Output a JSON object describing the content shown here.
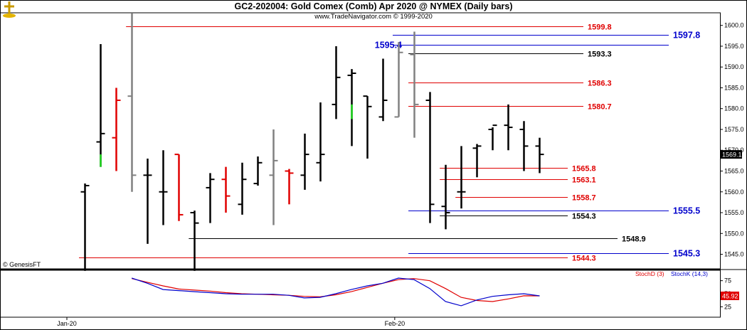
{
  "header": {
    "title": "GC2-202004:  Gold Comex (Comb) Apr 2020 @ NYMEX  (Daily bars)",
    "subtitle": "www.TradeNavigator.com © 1999-2020",
    "logo_icon": "gold-cross-icon"
  },
  "watermark": "© GenesisFT",
  "colors": {
    "up": "#000000",
    "down": "#000000",
    "red_bar": "#e00000",
    "green_bar": "#1ed81e",
    "gray_bar": "#808080",
    "red_line": "#e00000",
    "blue_line": "#0000cc",
    "black_line": "#000000",
    "stoch_d": "#e00000",
    "stoch_k": "#0000cc"
  },
  "chart_data": [
    {
      "type": "bar",
      "subtype": "ohlc",
      "ylim": [
        1541.5,
        1602
      ],
      "yticks": [
        1545.0,
        1550.0,
        1555.0,
        1560.0,
        1565.0,
        1570.0,
        1575.0,
        1580.0,
        1585.0,
        1590.0,
        1595.0,
        1600.0
      ],
      "last_value": "1569.1",
      "x_labels": [
        {
          "label": "Jan-20",
          "bar": 0
        },
        {
          "label": "Feb-20",
          "bar": 20.9
        }
      ],
      "bars": [
        {
          "o": 1560,
          "h": 1562,
          "l": 1541,
          "c": 1561.5,
          "color": "black"
        },
        {
          "o": 1572,
          "h": 1595.5,
          "l": 1566,
          "c": 1574,
          "color": "black"
        },
        {
          "o": 1573,
          "h": 1585,
          "l": 1565,
          "c": 1582,
          "color": "red"
        },
        {
          "o": 1583,
          "h": 1603,
          "l": 1560,
          "c": 1564,
          "color": "gray"
        },
        {
          "o": 1564,
          "h": 1568,
          "l": 1547.5,
          "c": 1564,
          "color": "black"
        },
        {
          "o": 1560,
          "h": 1570,
          "l": 1552,
          "c": 1560,
          "color": "black"
        },
        {
          "o": 1569,
          "h": 1569,
          "l": 1553,
          "c": 1554.5,
          "color": "red"
        },
        {
          "o": 1555,
          "h": 1555.5,
          "l": 1541,
          "c": 1552.5,
          "color": "black"
        },
        {
          "o": 1561,
          "h": 1564.5,
          "l": 1552.5,
          "c": 1563,
          "color": "black"
        },
        {
          "o": 1563,
          "h": 1566,
          "l": 1555,
          "c": 1559,
          "color": "red"
        },
        {
          "o": 1557,
          "h": 1567,
          "l": 1554.5,
          "c": 1563,
          "color": "black"
        },
        {
          "o": 1562,
          "h": 1568.5,
          "l": 1561.5,
          "c": 1567,
          "color": "black"
        },
        {
          "o": 1564,
          "h": 1575,
          "l": 1552,
          "c": 1567.5,
          "color": "gray"
        },
        {
          "o": 1565,
          "h": 1565.5,
          "l": 1557,
          "c": 1564.5,
          "color": "red"
        },
        {
          "o": 1564,
          "h": 1574,
          "l": 1560.5,
          "c": 1569,
          "color": "black"
        },
        {
          "o": 1567,
          "h": 1581.5,
          "l": 1562.5,
          "c": 1569,
          "color": "black"
        },
        {
          "o": 1581,
          "h": 1595,
          "l": 1577.5,
          "c": 1587.5,
          "color": "black"
        },
        {
          "o": 1588,
          "h": 1589.5,
          "l": 1571,
          "c": 1588.5,
          "color": "black"
        },
        {
          "o": 1583,
          "h": 1583,
          "l": 1568,
          "c": 1580.5,
          "color": "black"
        },
        {
          "o": 1578,
          "h": 1592,
          "l": 1577,
          "c": 1582,
          "color": "black"
        },
        {
          "o": 1578,
          "h": 1596,
          "l": 1578,
          "c": 1593.5,
          "color": "gray"
        },
        {
          "o": 1593,
          "h": 1598.5,
          "l": 1573,
          "c": 1581,
          "color": "gray"
        },
        {
          "o": 1582,
          "h": 1584,
          "l": 1552.5,
          "c": 1557,
          "color": "black"
        },
        {
          "o": 1556.5,
          "h": 1566.5,
          "l": 1551,
          "c": 1555,
          "color": "black"
        },
        {
          "o": 1560,
          "h": 1571,
          "l": 1556,
          "c": 1560,
          "color": "black"
        },
        {
          "o": 1570.5,
          "h": 1571.5,
          "l": 1563.5,
          "c": 1571,
          "color": "black"
        },
        {
          "o": 1575,
          "h": 1575.5,
          "l": 1570,
          "c": 1576,
          "color": "black"
        },
        {
          "o": 1576,
          "h": 1581,
          "l": 1570,
          "c": 1575.5,
          "color": "black"
        },
        {
          "o": 1575,
          "h": 1577,
          "l": 1565,
          "c": 1571,
          "color": "black"
        },
        {
          "o": 1571,
          "h": 1573,
          "l": 1564.5,
          "c": 1569,
          "color": "black"
        }
      ],
      "levels": [
        {
          "value": 1599.8,
          "label": "1599.8",
          "color": "red",
          "start_bar": 3
        },
        {
          "value": 1597.8,
          "label": "1597.8",
          "color": "blue",
          "start_bar": 20
        },
        {
          "value": 1595.4,
          "label": "1595.4",
          "color": "blue",
          "start_bar": 20
        },
        {
          "value": 1593.3,
          "label": "1593.3",
          "color": "black",
          "start_bar": 21
        },
        {
          "value": 1586.3,
          "label": "1586.3",
          "color": "red",
          "start_bar": 21
        },
        {
          "value": 1580.7,
          "label": "1580.7",
          "color": "red",
          "start_bar": 21
        },
        {
          "value": 1565.8,
          "label": "1565.8",
          "color": "red",
          "start_bar": 23
        },
        {
          "value": 1563.1,
          "label": "1563.1",
          "color": "red",
          "start_bar": 23
        },
        {
          "value": 1558.7,
          "label": "1558.7",
          "color": "red",
          "start_bar": 24
        },
        {
          "value": 1555.5,
          "label": "1555.5",
          "color": "blue",
          "start_bar": 21
        },
        {
          "value": 1554.3,
          "label": "1554.3",
          "color": "black",
          "start_bar": 23
        },
        {
          "value": 1548.9,
          "label": "1548.9",
          "color": "black",
          "start_bar": 7
        },
        {
          "value": 1545.3,
          "label": "1545.3",
          "color": "blue",
          "start_bar": 21
        },
        {
          "value": 1544.3,
          "label": "1544.3",
          "color": "red",
          "start_bar": 0
        }
      ]
    },
    {
      "type": "line",
      "ylim": [
        5,
        95
      ],
      "yticks": [
        25,
        50,
        75
      ],
      "last_value": "45.92",
      "series": [
        {
          "name": "StochD (3)",
          "values": [
            null,
            null,
            null,
            79,
            72,
            65,
            59,
            57,
            55,
            52,
            50,
            49,
            48,
            47,
            45,
            44,
            48,
            54,
            62,
            70,
            77,
            79,
            75,
            60,
            43,
            37,
            35,
            40,
            46,
            45.92
          ]
        },
        {
          "name": "StochK (14,3)",
          "values": [
            null,
            null,
            null,
            80,
            70,
            58,
            56,
            54,
            52,
            50,
            49,
            49,
            49,
            47,
            42,
            43,
            50,
            58,
            65,
            70,
            80,
            77,
            60,
            35,
            27,
            38,
            45,
            48,
            50,
            45.92
          ]
        }
      ]
    }
  ]
}
